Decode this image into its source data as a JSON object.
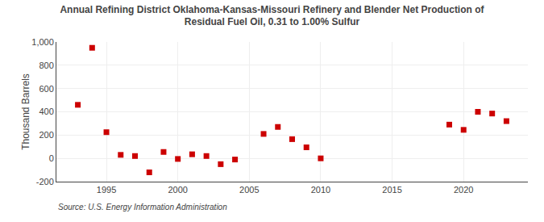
{
  "chart_data": {
    "type": "scatter",
    "title": "Annual Refining District Oklahoma-Kansas-Missouri Refinery and Blender Net Production of\nResidual Fuel Oil, 0.31 to 1.00% Sulfur",
    "ylabel": "Thousand Barrels",
    "source": "Source: U.S. Energy Information Administration",
    "x": [
      1993,
      1994,
      1995,
      1996,
      1997,
      1998,
      1999,
      2000,
      2001,
      2002,
      2003,
      2004,
      2006,
      2007,
      2008,
      2009,
      2010,
      2019,
      2020,
      2021,
      2022,
      2023
    ],
    "values": [
      460,
      950,
      225,
      30,
      20,
      -120,
      55,
      -5,
      35,
      20,
      -50,
      -10,
      210,
      270,
      165,
      95,
      0,
      290,
      245,
      400,
      385,
      320
    ],
    "color": "#cc0000",
    "marker": "square",
    "xlim": [
      1991.5,
      2024.5
    ],
    "xticks": [
      1995,
      2000,
      2005,
      2010,
      2015,
      2020
    ],
    "ylim": [
      -200,
      1000
    ],
    "yticks": [
      -200,
      0,
      200,
      400,
      600,
      800,
      {
        "value": 1000,
        "label": "1,000"
      }
    ],
    "grid": true
  }
}
